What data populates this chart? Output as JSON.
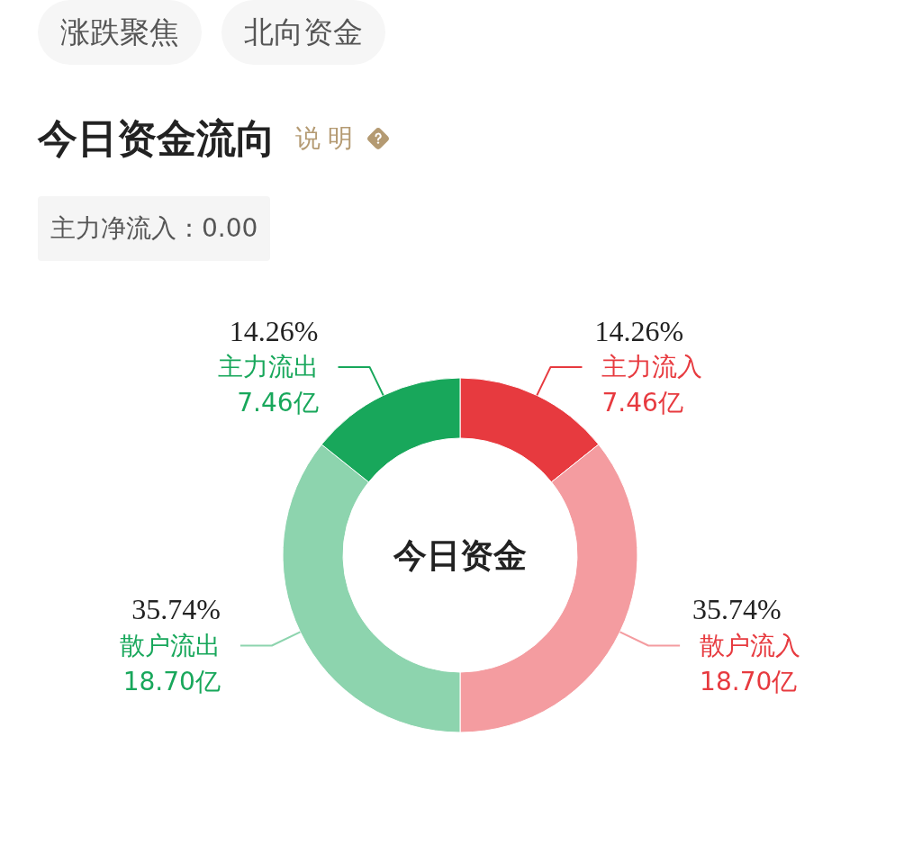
{
  "chart_data": {
    "type": "donut",
    "title": "今日资金流向",
    "subtitle": "主力净流入：0.00",
    "categories": [
      "主力流入",
      "散户流入",
      "散户流出",
      "主力流出"
    ],
    "values": [
      7.46,
      18.7,
      18.7,
      7.46
    ],
    "colors": [
      "#e73a3f",
      "#f49ca0",
      "#8dd4ae",
      "#18a75b"
    ],
    "value_labels": [
      "7.46亿",
      "18.70亿",
      "18.70亿",
      "7.46亿"
    ],
    "annotations": [
      "涨跌聚焦",
      "北向资金",
      "说明",
      "今日资金",
      {
        "text": "14.26%",
        "x": "主力流入"
      },
      {
        "text": "35.74%",
        "x": "散户流入"
      },
      {
        "text": "35.74%",
        "x": "散户流出"
      },
      {
        "text": "14.26%",
        "x": "主力流出"
      }
    ]
  }
}
